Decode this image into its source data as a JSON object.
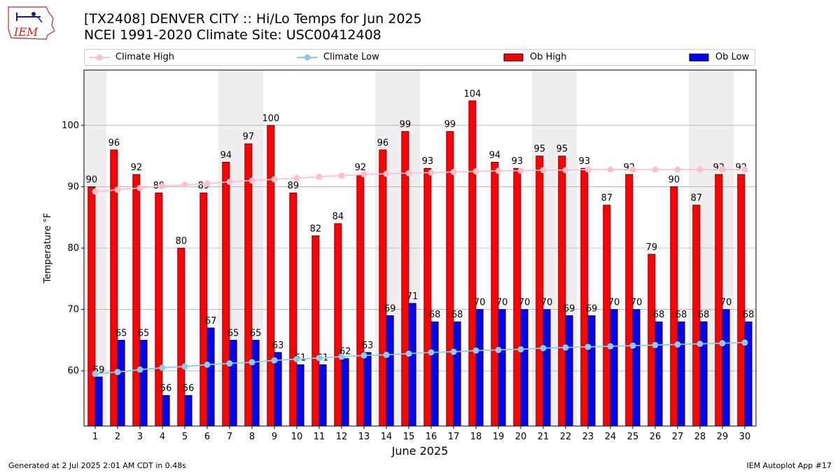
{
  "title_line1": "[TX2408] DENVER CITY :: Hi/Lo Temps for Jun 2025",
  "title_line2": "NCEI 1991-2020 Climate Site: USC00412408",
  "footer_left": "Generated at 2 Jul 2025 2:01 AM CDT in 0.48s",
  "footer_right": "IEM Autoplot App #17",
  "logo_text": "IEM",
  "colors": {
    "ob_high": "#ff0000",
    "ob_low": "#0000ff",
    "climate_high": "#ffc0cb",
    "climate_low": "#87ceeb",
    "weekend_shade": "#eeeeee",
    "grid": "#b0b0b0"
  },
  "legend": [
    {
      "label": "Climate High",
      "kind": "line",
      "color": "#ffc0cb"
    },
    {
      "label": "Climate Low",
      "kind": "line",
      "color": "#87ceeb"
    },
    {
      "label": "Ob High",
      "kind": "bar",
      "color": "#ff0000"
    },
    {
      "label": "Ob Low",
      "kind": "bar",
      "color": "#0000ff"
    }
  ],
  "chart_data": {
    "type": "bar",
    "xlabel": "June 2025",
    "ylabel": "Temperature °F",
    "ylim": [
      51,
      109
    ],
    "yticks": [
      60,
      70,
      80,
      90,
      100
    ],
    "grid": true,
    "legend_position": "top",
    "categories": [
      1,
      2,
      3,
      4,
      5,
      6,
      7,
      8,
      9,
      10,
      11,
      12,
      13,
      14,
      15,
      16,
      17,
      18,
      19,
      20,
      21,
      22,
      23,
      24,
      25,
      26,
      27,
      28,
      29,
      30
    ],
    "weekend_spans": [
      [
        1,
        1
      ],
      [
        7,
        8
      ],
      [
        14,
        15
      ],
      [
        21,
        22
      ],
      [
        28,
        29
      ]
    ],
    "series": [
      {
        "name": "Ob High",
        "type": "bar",
        "values": [
          90,
          96,
          92,
          89,
          80,
          89,
          94,
          97,
          100,
          89,
          82,
          84,
          92,
          96,
          99,
          93,
          99,
          104,
          94,
          93,
          95,
          95,
          93,
          87,
          92,
          79,
          90,
          87,
          92,
          92
        ]
      },
      {
        "name": "Ob Low",
        "type": "bar",
        "values": [
          59,
          65,
          65,
          56,
          56,
          67,
          65,
          65,
          63,
          61,
          61,
          62,
          63,
          69,
          71,
          68,
          68,
          70,
          70,
          70,
          70,
          69,
          69,
          70,
          70,
          68,
          68,
          68,
          70,
          68
        ]
      },
      {
        "name": "Climate High",
        "type": "line",
        "values": [
          89.2,
          89.5,
          89.8,
          90.1,
          90.3,
          90.5,
          90.8,
          91.0,
          91.2,
          91.4,
          91.6,
          91.8,
          92.0,
          92.1,
          92.2,
          92.3,
          92.4,
          92.5,
          92.6,
          92.6,
          92.7,
          92.7,
          92.8,
          92.8,
          92.8,
          92.8,
          92.8,
          92.8,
          92.8,
          92.8
        ]
      },
      {
        "name": "Climate Low",
        "type": "line",
        "values": [
          59.5,
          59.8,
          60.2,
          60.5,
          60.7,
          61.0,
          61.2,
          61.4,
          61.7,
          61.9,
          62.1,
          62.3,
          62.5,
          62.6,
          62.8,
          63.0,
          63.1,
          63.3,
          63.4,
          63.5,
          63.7,
          63.8,
          63.9,
          64.0,
          64.1,
          64.2,
          64.3,
          64.4,
          64.5,
          64.6
        ]
      }
    ]
  }
}
